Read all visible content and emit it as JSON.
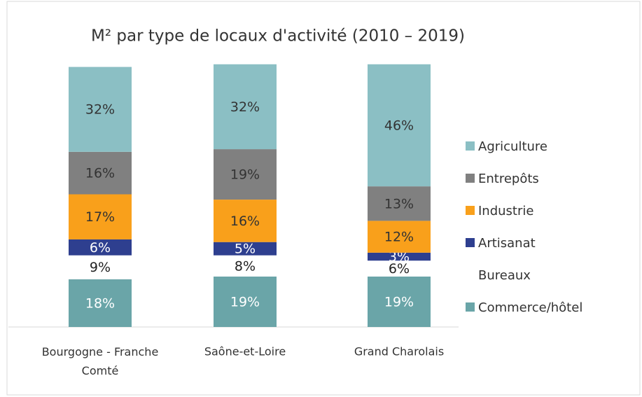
{
  "chart_data": {
    "type": "stacked_bar",
    "title": "M² par type de locaux d'activité (2010 – 2019)",
    "categories": [
      "Bourgogne - Franche Comté",
      "Saône-et-Loire",
      "Grand Charolais"
    ],
    "ylim": [
      0,
      100
    ],
    "series": [
      {
        "name": "Commerce/hôtel",
        "color": "#6aa5a8",
        "label_color": "#ffffff",
        "values": [
          18,
          19,
          19
        ],
        "value_labels": [
          "18%",
          "19%",
          "19%"
        ]
      },
      {
        "name": "Bureaux",
        "color": "#ffffff",
        "label_color": "#222222",
        "values": [
          9,
          8,
          6
        ],
        "value_labels": [
          "9%",
          "8%",
          "6%"
        ]
      },
      {
        "name": "Artisanat",
        "color": "#2e3f8f",
        "label_color": "#ffffff",
        "values": [
          6,
          5,
          3
        ],
        "value_labels": [
          "6%",
          "5%",
          "3%"
        ]
      },
      {
        "name": "Industrie",
        "color": "#f9a01b",
        "label_color": "#333333",
        "values": [
          17,
          16,
          12
        ],
        "value_labels": [
          "17%",
          "16%",
          "12%"
        ]
      },
      {
        "name": "Entrepôts",
        "color": "#808080",
        "label_color": "#333333",
        "values": [
          16,
          19,
          13
        ],
        "value_labels": [
          "16%",
          "19%",
          "13%"
        ]
      },
      {
        "name": "Agriculture",
        "color": "#8bbfc4",
        "label_color": "#333333",
        "values": [
          32,
          32,
          46
        ],
        "value_labels": [
          "32%",
          "32%",
          "46%"
        ]
      }
    ]
  }
}
